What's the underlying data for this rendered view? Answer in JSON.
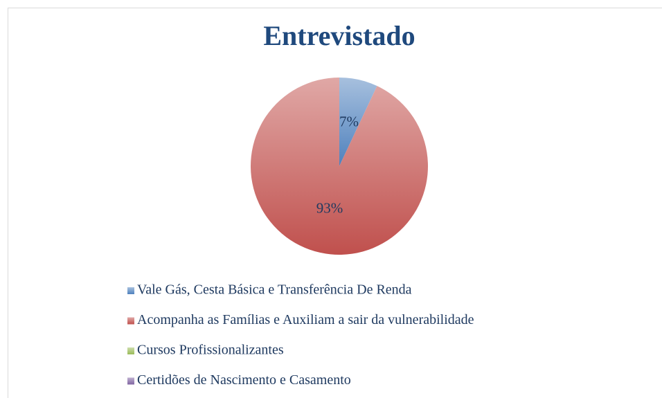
{
  "chart_data": {
    "type": "pie",
    "title": "Entrevistado",
    "categories": [
      "Vale Gás, Cesta Básica e Transferência De Renda",
      "Acompanha as Famílias e Auxiliam a sair da vulnerabilidade",
      "Cursos Profissionalizantes",
      "Certidões de Nascimento e Casamento"
    ],
    "values": [
      7,
      93,
      0,
      0
    ],
    "value_labels": [
      "7%",
      "93%",
      null,
      null
    ],
    "colors": [
      "#4f81bd",
      "#c0504d",
      "#9bbb59",
      "#8064a2"
    ],
    "legend": "bottom"
  }
}
